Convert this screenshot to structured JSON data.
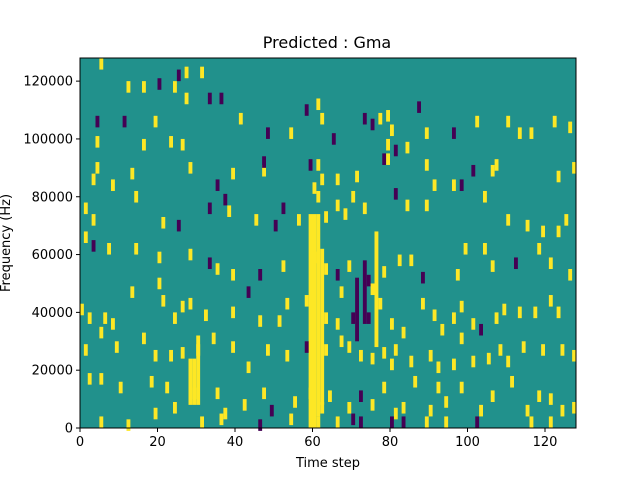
{
  "chart_data": {
    "type": "heatmap",
    "title": "Predicted : Gma",
    "xlabel": "Time step",
    "ylabel": "Frequency (Hz)",
    "xlim": [
      0,
      128
    ],
    "ylim": [
      0,
      128000
    ],
    "xticks": [
      0,
      20,
      40,
      60,
      80,
      100,
      120
    ],
    "yticks": [
      0,
      20000,
      40000,
      60000,
      80000,
      100000,
      120000
    ],
    "colormap": "viridis",
    "values_legend": {
      "low": -1,
      "background": 0,
      "high": 1
    },
    "colors": {
      "low": "#440154",
      "background": "#21918c",
      "high": "#fde725"
    },
    "cells": [
      [
        5,
        126000,
        1
      ],
      [
        12,
        118000,
        1
      ],
      [
        16,
        118000,
        1
      ],
      [
        24,
        118000,
        1
      ],
      [
        20,
        119000,
        -1
      ],
      [
        25,
        122000,
        -1
      ],
      [
        27,
        123000,
        1
      ],
      [
        31,
        123000,
        1
      ],
      [
        4,
        106000,
        -1
      ],
      [
        11,
        106000,
        -1
      ],
      [
        19,
        106000,
        1
      ],
      [
        27,
        114000,
        1
      ],
      [
        33,
        114000,
        -1
      ],
      [
        36,
        114000,
        -1
      ],
      [
        41,
        107000,
        1
      ],
      [
        58,
        110000,
        -1
      ],
      [
        61,
        112000,
        1
      ],
      [
        62,
        107000,
        1
      ],
      [
        73,
        107000,
        -1
      ],
      [
        77,
        107000,
        1
      ],
      [
        79,
        108000,
        1
      ],
      [
        80,
        103000,
        1
      ],
      [
        87,
        111000,
        -1
      ],
      [
        102,
        106000,
        1
      ],
      [
        110,
        106000,
        1
      ],
      [
        122,
        106000,
        1
      ],
      [
        126,
        104000,
        1
      ],
      [
        4,
        99000,
        1
      ],
      [
        23,
        99000,
        1
      ],
      [
        16,
        98000,
        1
      ],
      [
        26,
        98000,
        1
      ],
      [
        48,
        102000,
        -1
      ],
      [
        54,
        102000,
        1
      ],
      [
        65,
        100000,
        -1
      ],
      [
        75,
        105000,
        -1
      ],
      [
        79,
        98000,
        1
      ],
      [
        89,
        102000,
        1
      ],
      [
        96,
        102000,
        -1
      ],
      [
        113,
        102000,
        1
      ],
      [
        116,
        102000,
        1
      ],
      [
        4,
        90000,
        1
      ],
      [
        3,
        86000,
        1
      ],
      [
        8,
        84000,
        1
      ],
      [
        13,
        88000,
        1
      ],
      [
        28,
        90000,
        1
      ],
      [
        35,
        84000,
        -1
      ],
      [
        39,
        88000,
        1
      ],
      [
        47,
        89000,
        1
      ],
      [
        47,
        92000,
        -1
      ],
      [
        59,
        91000,
        -1
      ],
      [
        61,
        91000,
        1
      ],
      [
        60,
        83000,
        1
      ],
      [
        62,
        86000,
        1
      ],
      [
        66,
        86000,
        1
      ],
      [
        71,
        87000,
        1
      ],
      [
        78,
        93000,
        -1
      ],
      [
        79,
        93000,
        1
      ],
      [
        81,
        96000,
        -1
      ],
      [
        84,
        97000,
        1
      ],
      [
        89,
        91000,
        1
      ],
      [
        91,
        84000,
        1
      ],
      [
        96,
        84000,
        1
      ],
      [
        98,
        84000,
        -1
      ],
      [
        101,
        89000,
        -1
      ],
      [
        106,
        89000,
        1
      ],
      [
        107,
        91000,
        1
      ],
      [
        123,
        87000,
        1
      ],
      [
        127,
        90000,
        1
      ],
      [
        1,
        76000,
        1
      ],
      [
        3,
        72000,
        1
      ],
      [
        14,
        80000,
        1
      ],
      [
        21,
        71000,
        1
      ],
      [
        25,
        70000,
        -1
      ],
      [
        33,
        76000,
        -1
      ],
      [
        37,
        79000,
        -1
      ],
      [
        38,
        75000,
        1
      ],
      [
        45,
        72000,
        1
      ],
      [
        50,
        70000,
        -1
      ],
      [
        52,
        76000,
        -1
      ],
      [
        56,
        72000,
        1
      ],
      [
        61,
        80000,
        1
      ],
      [
        63,
        73000,
        1
      ],
      [
        66,
        77000,
        1
      ],
      [
        68,
        74000,
        1
      ],
      [
        70,
        80000,
        1
      ],
      [
        73,
        76000,
        1
      ],
      [
        81,
        81000,
        -1
      ],
      [
        84,
        77000,
        1
      ],
      [
        89,
        77000,
        1
      ],
      [
        104,
        80000,
        1
      ],
      [
        110,
        72000,
        1
      ],
      [
        115,
        70000,
        1
      ],
      [
        119,
        68000,
        1
      ],
      [
        123,
        68000,
        1
      ],
      [
        125,
        72000,
        1
      ],
      [
        1,
        66000,
        1
      ],
      [
        3,
        63000,
        -1
      ],
      [
        7,
        62000,
        1
      ],
      [
        14,
        62000,
        1
      ],
      [
        20,
        59000,
        1
      ],
      [
        28,
        60000,
        1
      ],
      [
        33,
        57000,
        -1
      ],
      [
        35,
        55000,
        1
      ],
      [
        39,
        53000,
        1
      ],
      [
        46,
        53000,
        -1
      ],
      [
        52,
        56000,
        1
      ],
      [
        60,
        59000,
        1
      ],
      [
        63,
        55000,
        1
      ],
      [
        66,
        53000,
        -1
      ],
      [
        67,
        47000,
        1
      ],
      [
        69,
        56000,
        1
      ],
      [
        74,
        51000,
        -1
      ],
      [
        75,
        48000,
        1
      ],
      [
        78,
        54000,
        1
      ],
      [
        82,
        58000,
        1
      ],
      [
        85,
        58000,
        1
      ],
      [
        88,
        52000,
        -1
      ],
      [
        97,
        53000,
        1
      ],
      [
        99,
        62000,
        1
      ],
      [
        104,
        62000,
        1
      ],
      [
        106,
        56000,
        1
      ],
      [
        112,
        57000,
        -1
      ],
      [
        118,
        62000,
        1
      ],
      [
        121,
        57000,
        1
      ],
      [
        126,
        53000,
        1
      ],
      [
        0,
        41000,
        1
      ],
      [
        2,
        38000,
        1
      ],
      [
        6,
        38000,
        1
      ],
      [
        8,
        36000,
        1
      ],
      [
        13,
        47000,
        1
      ],
      [
        20,
        50000,
        1
      ],
      [
        21,
        44000,
        1
      ],
      [
        24,
        38000,
        1
      ],
      [
        26,
        42000,
        1
      ],
      [
        28,
        43000,
        1
      ],
      [
        32,
        39000,
        1
      ],
      [
        39,
        40000,
        1
      ],
      [
        43,
        47000,
        -1
      ],
      [
        46,
        37000,
        1
      ],
      [
        51,
        37000,
        1
      ],
      [
        53,
        43000,
        1
      ],
      [
        58,
        44000,
        1
      ],
      [
        63,
        38000,
        1
      ],
      [
        66,
        36000,
        1
      ],
      [
        70,
        38000,
        -1
      ],
      [
        74,
        38000,
        -1
      ],
      [
        77,
        43000,
        1
      ],
      [
        80,
        36000,
        1
      ],
      [
        83,
        33000,
        1
      ],
      [
        88,
        43000,
        1
      ],
      [
        91,
        39000,
        1
      ],
      [
        93,
        34000,
        1
      ],
      [
        96,
        38000,
        1
      ],
      [
        98,
        42000,
        1
      ],
      [
        101,
        36000,
        1
      ],
      [
        103,
        34000,
        -1
      ],
      [
        107,
        38000,
        1
      ],
      [
        109,
        41000,
        1
      ],
      [
        113,
        40000,
        1
      ],
      [
        117,
        40000,
        1
      ],
      [
        121,
        44000,
        1
      ],
      [
        123,
        40000,
        1
      ],
      [
        1,
        27000,
        1
      ],
      [
        5,
        33000,
        1
      ],
      [
        9,
        28000,
        1
      ],
      [
        16,
        31000,
        1
      ],
      [
        19,
        25000,
        1
      ],
      [
        23,
        25000,
        1
      ],
      [
        26,
        26000,
        1
      ],
      [
        30,
        27000,
        1
      ],
      [
        34,
        31000,
        1
      ],
      [
        39,
        28000,
        1
      ],
      [
        43,
        21000,
        1
      ],
      [
        48,
        27000,
        1
      ],
      [
        53,
        25000,
        1
      ],
      [
        58,
        28000,
        -1
      ],
      [
        63,
        27000,
        1
      ],
      [
        67,
        30000,
        1
      ],
      [
        69,
        28000,
        1
      ],
      [
        72,
        25000,
        1
      ],
      [
        75,
        24000,
        1
      ],
      [
        78,
        26000,
        1
      ],
      [
        80,
        22000,
        1
      ],
      [
        81,
        27000,
        1
      ],
      [
        85,
        23000,
        1
      ],
      [
        90,
        25000,
        1
      ],
      [
        92,
        21000,
        1
      ],
      [
        96,
        22000,
        1
      ],
      [
        98,
        31000,
        1
      ],
      [
        101,
        23000,
        1
      ],
      [
        105,
        24000,
        1
      ],
      [
        108,
        27000,
        1
      ],
      [
        110,
        23000,
        1
      ],
      [
        114,
        28000,
        1
      ],
      [
        119,
        27000,
        1
      ],
      [
        124,
        27000,
        1
      ],
      [
        127,
        25000,
        1
      ],
      [
        2,
        17000,
        1
      ],
      [
        5,
        17000,
        1
      ],
      [
        10,
        14000,
        1
      ],
      [
        18,
        16000,
        1
      ],
      [
        22,
        14000,
        1
      ],
      [
        24,
        7000,
        1
      ],
      [
        29,
        12000,
        1
      ],
      [
        35,
        12000,
        1
      ],
      [
        37,
        5000,
        1
      ],
      [
        42,
        8000,
        1
      ],
      [
        47,
        12000,
        1
      ],
      [
        49,
        6000,
        -1
      ],
      [
        55,
        9000,
        1
      ],
      [
        59,
        12000,
        1
      ],
      [
        62,
        7000,
        1
      ],
      [
        64,
        11000,
        1
      ],
      [
        69,
        7000,
        1
      ],
      [
        70,
        3000,
        -1
      ],
      [
        72,
        11000,
        -1
      ],
      [
        75,
        8000,
        1
      ],
      [
        78,
        14000,
        1
      ],
      [
        81,
        5000,
        1
      ],
      [
        83,
        7000,
        1
      ],
      [
        86,
        16000,
        1
      ],
      [
        90,
        6000,
        1
      ],
      [
        92,
        14000,
        1
      ],
      [
        94,
        9000,
        1
      ],
      [
        98,
        14000,
        1
      ],
      [
        103,
        6000,
        1
      ],
      [
        106,
        11000,
        1
      ],
      [
        111,
        16000,
        1
      ],
      [
        115,
        6000,
        1
      ],
      [
        118,
        11000,
        1
      ],
      [
        121,
        10000,
        1
      ],
      [
        124,
        6000,
        1
      ],
      [
        127,
        7000,
        1
      ],
      [
        5,
        2000,
        1
      ],
      [
        12,
        1000,
        1
      ],
      [
        19,
        5000,
        1
      ],
      [
        31,
        2000,
        1
      ],
      [
        36,
        3000,
        1
      ],
      [
        46,
        1000,
        -1
      ],
      [
        54,
        3000,
        1
      ],
      [
        61,
        2000,
        1
      ],
      [
        66,
        2000,
        1
      ],
      [
        72,
        2000,
        -1
      ],
      [
        80,
        2000,
        -1
      ],
      [
        83,
        2000,
        -1
      ],
      [
        89,
        2000,
        1
      ],
      [
        94,
        2000,
        1
      ],
      [
        102,
        2000,
        -1
      ],
      [
        116,
        2000,
        1
      ],
      [
        121,
        2000,
        1
      ]
    ],
    "bands": [
      {
        "x": 59,
        "y_start": 0,
        "y_end": 74000,
        "value": 1
      },
      {
        "x": 60,
        "y_start": 0,
        "y_end": 74000,
        "value": 1
      },
      {
        "x": 61,
        "y_start": 4000,
        "y_end": 74000,
        "value": 1
      },
      {
        "x": 62,
        "y_start": 8000,
        "y_end": 62000,
        "value": 1
      },
      {
        "x": 28,
        "y_start": 8000,
        "y_end": 24000,
        "value": 1
      },
      {
        "x": 29,
        "y_start": 8000,
        "y_end": 24000,
        "value": 1
      },
      {
        "x": 30,
        "y_start": 8000,
        "y_end": 32000,
        "value": 1
      },
      {
        "x": 71,
        "y_start": 30000,
        "y_end": 52000,
        "value": -1
      },
      {
        "x": 73,
        "y_start": 36000,
        "y_end": 58000,
        "value": -1
      },
      {
        "x": 76,
        "y_start": 28000,
        "y_end": 68000,
        "value": 1
      }
    ]
  }
}
